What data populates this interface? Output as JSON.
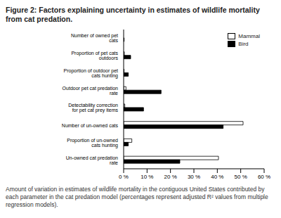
{
  "chart_data": {
    "type": "bar",
    "orientation": "horizontal",
    "title": "Figure 2: Factors explaining uncertainty in estimates of wildlife mortality from cat predation.",
    "caption": "Amount of variation in estimates of wildlife mortality in the contiguous United States contributed by each parameter in the cat predation model (percentages represent adjusted R² values from multiple regression models).",
    "categories": [
      "Number of owned pet cats",
      "Proportion of pet cats outdoors",
      "Proportion of outdoor pet cats hunting",
      "Outdoor pet cat predation rate",
      "Detectability correction for pet cat prey items",
      "Number of un-owned cats",
      "Proportion of un-owned cats hunting",
      "Un-owned cat predation rate"
    ],
    "series": [
      {
        "name": "Mammal",
        "color": "#ffffff",
        "values": [
          0,
          0.3,
          0.2,
          1,
          0.5,
          51,
          3.5,
          40.5
        ]
      },
      {
        "name": "Bird",
        "color": "#000000",
        "values": [
          0.2,
          3,
          2,
          16,
          8.5,
          42.5,
          2,
          24
        ]
      }
    ],
    "xlim": [
      0,
      60
    ],
    "xticks": [
      {
        "value": 0,
        "label": "0 %"
      },
      {
        "value": 10,
        "label": "10 %"
      },
      {
        "value": 20,
        "label": "20 %"
      },
      {
        "value": 30,
        "label": "30 %"
      },
      {
        "value": 40,
        "label": "40 %"
      },
      {
        "value": 50,
        "label": "50 %"
      },
      {
        "value": 60,
        "label": "60 %"
      }
    ],
    "grid": false,
    "legend": "top-right",
    "data_labels": false
  }
}
